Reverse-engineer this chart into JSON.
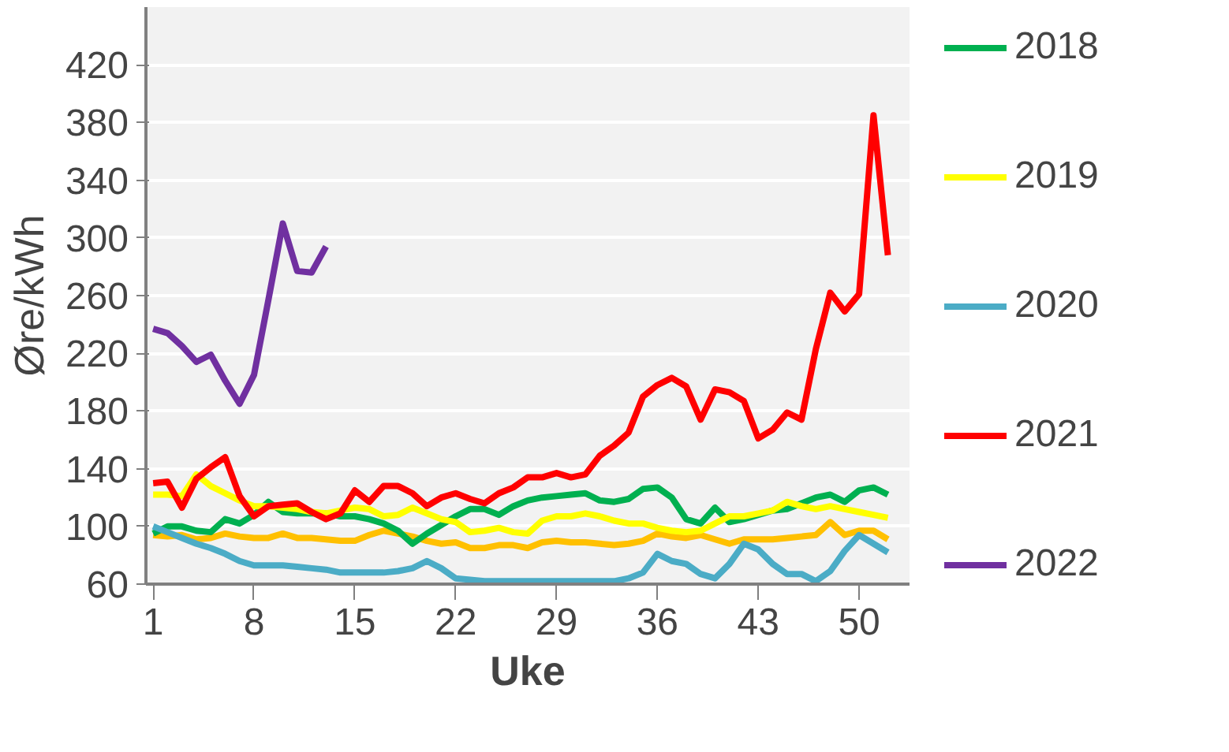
{
  "chart_data": {
    "type": "line",
    "xlabel": "Uke",
    "ylabel": "Øre/kWh",
    "x": [
      1,
      2,
      3,
      4,
      5,
      6,
      7,
      8,
      9,
      10,
      11,
      12,
      13,
      14,
      15,
      16,
      17,
      18,
      19,
      20,
      21,
      22,
      23,
      24,
      25,
      26,
      27,
      28,
      29,
      30,
      31,
      32,
      33,
      34,
      35,
      36,
      37,
      38,
      39,
      40,
      41,
      42,
      43,
      44,
      45,
      46,
      47,
      48,
      49,
      50,
      51,
      52
    ],
    "xlim": [
      0.5,
      53.5
    ],
    "xticks": [
      1,
      8,
      15,
      22,
      29,
      36,
      43,
      50
    ],
    "ylim": [
      60,
      460
    ],
    "yticks": [
      60,
      100,
      140,
      180,
      220,
      260,
      300,
      340,
      380,
      420
    ],
    "grid": "y",
    "legend": "right",
    "marker": "none",
    "line_style": "solid",
    "series": [
      {
        "color": "#ffc000",
        "values": [
          94,
          93,
          94,
          91,
          92,
          95,
          93,
          92,
          92,
          95,
          92,
          92,
          91,
          90,
          90,
          94,
          97,
          95,
          93,
          90,
          88,
          89,
          85,
          85,
          87,
          87,
          85,
          89,
          90,
          89,
          89,
          88,
          87,
          88,
          90,
          95,
          93,
          92,
          94,
          91,
          88,
          91,
          91,
          91,
          92,
          93,
          94,
          103,
          94,
          97,
          97,
          91
        ]
      },
      {
        "name": "2018",
        "color": "#00b050",
        "values": [
          95,
          100,
          100,
          97,
          96,
          105,
          102,
          108,
          117,
          110,
          109,
          109,
          109,
          107,
          107,
          105,
          102,
          97,
          88,
          95,
          101,
          107,
          112,
          112,
          108,
          114,
          118,
          120,
          121,
          122,
          123,
          118,
          117,
          119,
          126,
          127,
          120,
          105,
          102,
          113,
          103,
          105,
          108,
          111,
          112,
          116,
          120,
          122,
          117,
          125,
          127,
          122
        ]
      },
      {
        "name": "2019",
        "color": "#ffff00",
        "values": [
          122,
          122,
          121,
          136,
          128,
          123,
          118,
          114,
          114,
          113,
          112,
          110,
          109,
          111,
          113,
          112,
          107,
          108,
          113,
          109,
          105,
          103,
          96,
          97,
          99,
          96,
          95,
          104,
          107,
          107,
          109,
          107,
          104,
          102,
          102,
          99,
          97,
          96,
          97,
          102,
          107,
          107,
          109,
          111,
          117,
          114,
          112,
          114,
          112,
          110,
          108,
          106
        ]
      },
      {
        "name": "2020",
        "color": "#4bacc6",
        "values": [
          100,
          96,
          92,
          88,
          85,
          81,
          76,
          73,
          73,
          73,
          72,
          71,
          70,
          68,
          68,
          68,
          68,
          69,
          71,
          76,
          71,
          64,
          63,
          62,
          62,
          62,
          62,
          62,
          62,
          62,
          62,
          62,
          62,
          64,
          68,
          81,
          76,
          74,
          67,
          64,
          74,
          88,
          84,
          74,
          67,
          67,
          62,
          69,
          83,
          94,
          88,
          82
        ]
      },
      {
        "name": "2021",
        "color": "#ff0000",
        "values": [
          130,
          131,
          113,
          133,
          141,
          148,
          121,
          107,
          114,
          115,
          116,
          110,
          105,
          109,
          125,
          117,
          128,
          128,
          123,
          114,
          120,
          123,
          119,
          116,
          123,
          127,
          134,
          134,
          137,
          134,
          136,
          149,
          156,
          165,
          190,
          198,
          203,
          197,
          174,
          195,
          193,
          187,
          161,
          167,
          179,
          174,
          223,
          262,
          249,
          261,
          385,
          288
        ]
      },
      {
        "name": "2022",
        "color": "#7030a0",
        "values": [
          237,
          234,
          225,
          214,
          219,
          201,
          185,
          205,
          257,
          310,
          277,
          276,
          294,
          null,
          null,
          null,
          null,
          null,
          null,
          null,
          null,
          null,
          null,
          null,
          null,
          null,
          null,
          null,
          null,
          null,
          null,
          null,
          null,
          null,
          null,
          null,
          null,
          null,
          null,
          null,
          null,
          null,
          null,
          null,
          null,
          null,
          null,
          null,
          null,
          null,
          null,
          null
        ]
      }
    ]
  }
}
